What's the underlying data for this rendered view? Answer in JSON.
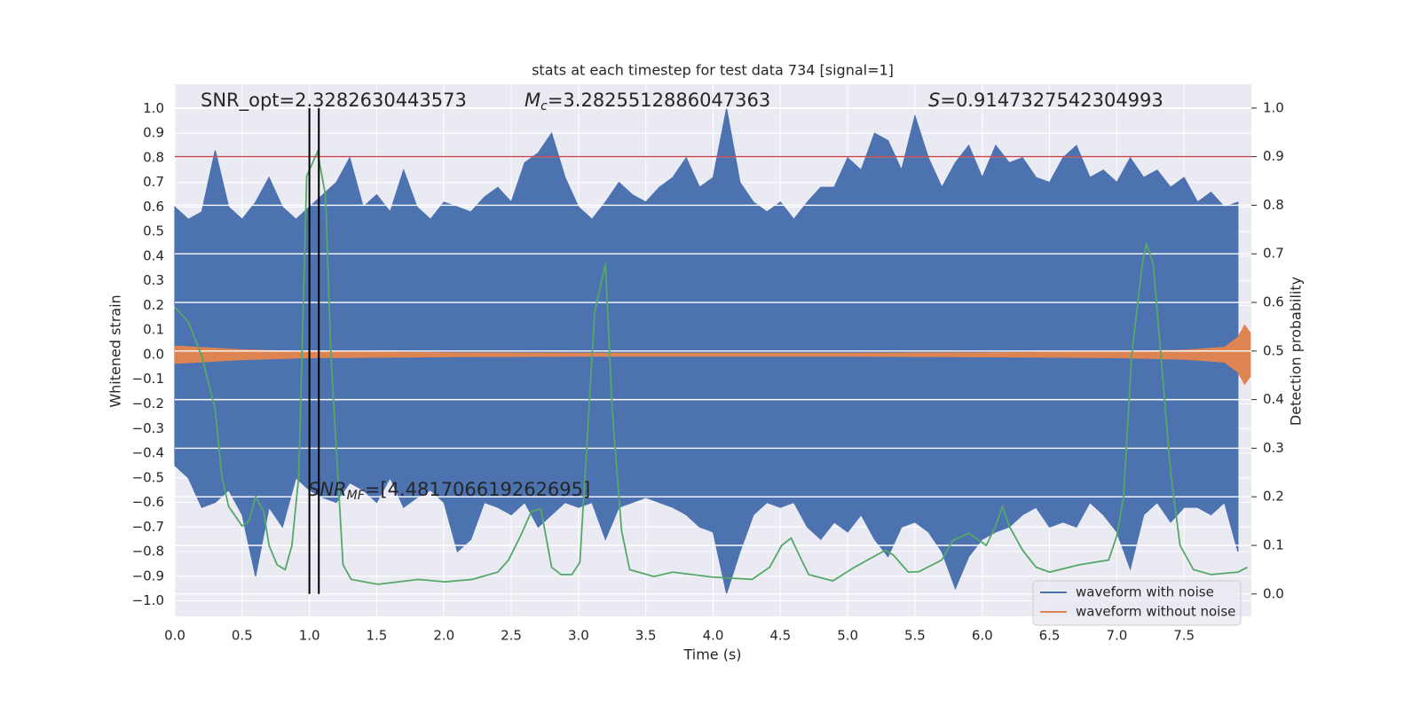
{
  "chart_data": {
    "type": "line",
    "title": "stats at each timestep for test data 734 [signal=1]",
    "xlabel": "Time (s)",
    "ylabel": "Whitened strain",
    "y2label": "Detection probability",
    "annotations": [
      {
        "text": "SNR_opt=2.3282630443573"
      },
      {
        "symbol": "M",
        "subscript": "c",
        "text": "=3.2825512886047363"
      },
      {
        "symbol": "S",
        "text": "=0.9147327542304993"
      },
      {
        "symbol": "SNR",
        "subscript": "MF",
        "text": "=[4.481706619262695]"
      }
    ],
    "xlim": [
      0,
      8.0
    ],
    "ylim": [
      -1.063,
      1.099
    ],
    "y2lim": [
      -0.046,
      1.049
    ],
    "xticks": [
      {
        "value": 0,
        "label": "0.0"
      },
      {
        "value": 0.5,
        "label": "0.5"
      },
      {
        "value": 1,
        "label": "1.0"
      },
      {
        "value": 1.5,
        "label": "1.5"
      },
      {
        "value": 2,
        "label": "2.0"
      },
      {
        "value": 2.5,
        "label": "2.5"
      },
      {
        "value": 3,
        "label": "3.0"
      },
      {
        "value": 3.5,
        "label": "3.5"
      },
      {
        "value": 4,
        "label": "4.0"
      },
      {
        "value": 4.5,
        "label": "4.5"
      },
      {
        "value": 5,
        "label": "5.0"
      },
      {
        "value": 5.5,
        "label": "5.5"
      },
      {
        "value": 6,
        "label": "6.0"
      },
      {
        "value": 6.5,
        "label": "6.5"
      },
      {
        "value": 7,
        "label": "7.0"
      },
      {
        "value": 7.5,
        "label": "7.5"
      }
    ],
    "yticks": [
      {
        "value": -1,
        "label": "−1.0"
      },
      {
        "value": -0.9,
        "label": "−0.9"
      },
      {
        "value": -0.8,
        "label": "−0.8"
      },
      {
        "value": -0.7,
        "label": "−0.7"
      },
      {
        "value": -0.6,
        "label": "−0.6"
      },
      {
        "value": -0.5,
        "label": "−0.5"
      },
      {
        "value": -0.4,
        "label": "−0.4"
      },
      {
        "value": -0.3,
        "label": "−0.3"
      },
      {
        "value": -0.2,
        "label": "−0.2"
      },
      {
        "value": -0.1,
        "label": "−0.1"
      },
      {
        "value": 0,
        "label": "0.0"
      },
      {
        "value": 0.1,
        "label": "0.1"
      },
      {
        "value": 0.2,
        "label": "0.2"
      },
      {
        "value": 0.3,
        "label": "0.3"
      },
      {
        "value": 0.4,
        "label": "0.4"
      },
      {
        "value": 0.5,
        "label": "0.5"
      },
      {
        "value": 0.6,
        "label": "0.6"
      },
      {
        "value": 0.7,
        "label": "0.7"
      },
      {
        "value": 0.8,
        "label": "0.8"
      },
      {
        "value": 0.9,
        "label": "0.9"
      },
      {
        "value": 1,
        "label": "1.0"
      }
    ],
    "y2ticks": [
      {
        "value": 0,
        "label": "0.0"
      },
      {
        "value": 0.1,
        "label": "0.1"
      },
      {
        "value": 0.2,
        "label": "0.2"
      },
      {
        "value": 0.3,
        "label": "0.3"
      },
      {
        "value": 0.4,
        "label": "0.4"
      },
      {
        "value": 0.5,
        "label": "0.5"
      },
      {
        "value": 0.6,
        "label": "0.6"
      },
      {
        "value": 0.7,
        "label": "0.7"
      },
      {
        "value": 0.8,
        "label": "0.8"
      },
      {
        "value": 0.9,
        "label": "0.9"
      },
      {
        "value": 1,
        "label": "1.0"
      }
    ],
    "grid": true,
    "legend": "lower right",
    "series": [
      {
        "name": "waveform with noise",
        "color": "#4c72b0",
        "x": [
          0,
          0.1,
          0.2,
          0.3,
          0.4,
          0.5,
          0.6,
          0.7,
          0.8,
          0.9,
          1,
          1.1,
          1.2,
          1.3,
          1.4,
          1.5,
          1.6,
          1.7,
          1.8,
          1.9,
          2,
          2.1,
          2.2,
          2.3,
          2.4,
          2.5,
          2.6,
          2.7,
          2.8,
          2.9,
          3,
          3.1,
          3.2,
          3.3,
          3.4,
          3.5,
          3.6,
          3.7,
          3.8,
          3.9,
          4,
          4.1,
          4.2,
          4.3,
          4.4,
          4.5,
          4.6,
          4.7,
          4.8,
          4.9,
          5,
          5.1,
          5.2,
          5.3,
          5.4,
          5.5,
          5.6,
          5.7,
          5.8,
          5.9,
          6,
          6.1,
          6.2,
          6.3,
          6.4,
          6.5,
          6.6,
          6.7,
          6.8,
          6.9,
          7,
          7.1,
          7.2,
          7.3,
          7.4,
          7.5,
          7.6,
          7.7,
          7.8,
          7.9
        ],
        "upper": [
          0.6,
          0.55,
          0.58,
          0.83,
          0.6,
          0.55,
          0.62,
          0.72,
          0.6,
          0.55,
          0.6,
          0.65,
          0.7,
          0.8,
          0.6,
          0.65,
          0.58,
          0.75,
          0.6,
          0.55,
          0.62,
          0.6,
          0.58,
          0.64,
          0.68,
          0.62,
          0.78,
          0.82,
          0.9,
          0.72,
          0.6,
          0.55,
          0.62,
          0.7,
          0.65,
          0.62,
          0.68,
          0.72,
          0.8,
          0.68,
          0.72,
          1.0,
          0.7,
          0.62,
          0.58,
          0.62,
          0.55,
          0.62,
          0.68,
          0.68,
          0.8,
          0.75,
          0.9,
          0.87,
          0.75,
          0.97,
          0.8,
          0.68,
          0.78,
          0.85,
          0.72,
          0.85,
          0.78,
          0.8,
          0.72,
          0.7,
          0.8,
          0.85,
          0.72,
          0.75,
          0.7,
          0.8,
          0.72,
          0.75,
          0.68,
          0.72,
          0.62,
          0.66,
          0.6,
          0.62
        ],
        "lower": [
          -0.45,
          -0.5,
          -0.62,
          -0.6,
          -0.55,
          -0.65,
          -0.9,
          -0.62,
          -0.7,
          -0.5,
          -0.55,
          -0.58,
          -0.6,
          -0.52,
          -0.55,
          -0.6,
          -0.5,
          -0.62,
          -0.58,
          -0.55,
          -0.6,
          -0.8,
          -0.75,
          -0.6,
          -0.62,
          -0.65,
          -0.6,
          -0.7,
          -0.65,
          -0.6,
          -0.62,
          -0.6,
          -0.75,
          -0.62,
          -0.6,
          -0.58,
          -0.6,
          -0.62,
          -0.65,
          -0.7,
          -0.72,
          -0.97,
          -0.8,
          -0.65,
          -0.6,
          -0.62,
          -0.6,
          -0.7,
          -0.75,
          -0.68,
          -0.72,
          -0.65,
          -0.75,
          -0.82,
          -0.7,
          -0.68,
          -0.72,
          -0.8,
          -0.95,
          -0.82,
          -0.75,
          -0.72,
          -0.7,
          -0.65,
          -0.62,
          -0.7,
          -0.68,
          -0.7,
          -0.6,
          -0.65,
          -0.72,
          -0.87,
          -0.65,
          -0.6,
          -0.68,
          -0.62,
          -0.62,
          -0.65,
          -0.6,
          -0.8
        ]
      },
      {
        "name": "waveform without noise",
        "color": "#dd8452",
        "x": [
          0,
          0.5,
          1,
          2,
          3,
          4,
          5,
          6,
          7,
          7.5,
          7.8,
          7.9,
          7.95,
          7.99
        ],
        "upper": [
          0.035,
          0.02,
          0.012,
          0.008,
          0.006,
          0.006,
          0.006,
          0.008,
          0.012,
          0.018,
          0.03,
          0.07,
          0.12,
          0.09
        ],
        "lower": [
          -0.035,
          -0.02,
          -0.012,
          -0.008,
          -0.006,
          -0.006,
          -0.006,
          -0.008,
          -0.012,
          -0.018,
          -0.03,
          -0.07,
          -0.12,
          -0.09
        ]
      }
    ],
    "detection": {
      "axis": "y2",
      "color": "#55a868",
      "x": [
        0,
        0.1,
        0.2,
        0.3,
        0.35,
        0.4,
        0.5,
        0.55,
        0.6,
        0.66,
        0.7,
        0.76,
        0.82,
        0.87,
        0.92,
        0.98,
        1.06,
        1.12,
        1.16,
        1.25,
        1.31,
        1.51,
        1.81,
        2.01,
        2.21,
        2.4,
        2.48,
        2.57,
        2.65,
        2.72,
        2.8,
        2.87,
        2.95,
        3.01,
        3.12,
        3.2,
        3.25,
        3.32,
        3.38,
        3.56,
        3.7,
        3.99,
        4.29,
        4.42,
        4.51,
        4.58,
        4.64,
        4.71,
        4.89,
        5.05,
        5.28,
        5.34,
        5.45,
        5.53,
        5.7,
        5.78,
        5.9,
        6.03,
        6.1,
        6.15,
        6.2,
        6.3,
        6.4,
        6.5,
        6.72,
        6.94,
        7.0,
        7.05,
        7.11,
        7.19,
        7.22,
        7.27,
        7.34,
        7.4,
        7.47,
        7.57,
        7.7,
        7.9,
        7.97
      ],
      "values": [
        0.59,
        0.56,
        0.49,
        0.38,
        0.24,
        0.18,
        0.14,
        0.15,
        0.2,
        0.17,
        0.1,
        0.06,
        0.05,
        0.1,
        0.24,
        0.86,
        0.91,
        0.82,
        0.49,
        0.06,
        0.03,
        0.02,
        0.03,
        0.025,
        0.03,
        0.045,
        0.07,
        0.12,
        0.17,
        0.175,
        0.055,
        0.04,
        0.04,
        0.065,
        0.58,
        0.68,
        0.38,
        0.13,
        0.05,
        0.036,
        0.045,
        0.035,
        0.03,
        0.055,
        0.1,
        0.115,
        0.08,
        0.04,
        0.027,
        0.055,
        0.09,
        0.08,
        0.045,
        0.046,
        0.07,
        0.11,
        0.125,
        0.1,
        0.14,
        0.18,
        0.14,
        0.09,
        0.055,
        0.045,
        0.06,
        0.07,
        0.12,
        0.2,
        0.49,
        0.68,
        0.72,
        0.68,
        0.45,
        0.25,
        0.1,
        0.05,
        0.04,
        0.045,
        0.055
      ]
    },
    "threshold": {
      "y": 0.9,
      "axis": "y2",
      "color": "#c44e52"
    },
    "vlines": {
      "x": [
        1.0,
        1.07
      ],
      "ymin": 0,
      "ymax": 1,
      "axis": "y2",
      "color": "#000000"
    }
  }
}
